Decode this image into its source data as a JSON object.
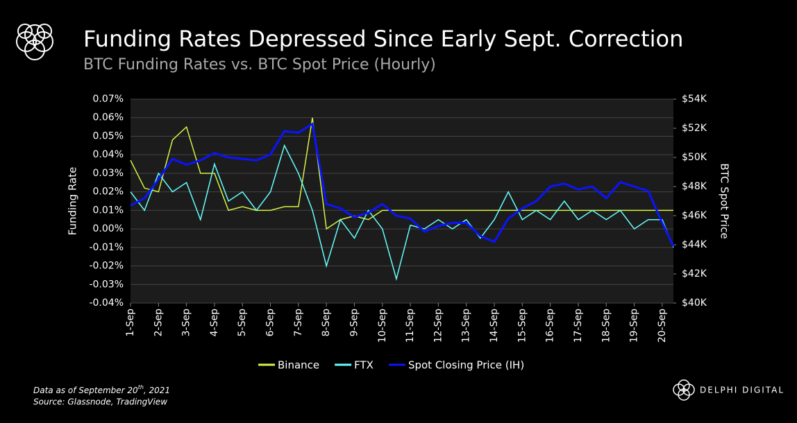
{
  "chart_data": {
    "type": "line",
    "title": "Funding Rates Depressed Since Early Sept. Correction",
    "subtitle": "BTC Funding Rates vs. BTC Spot Price (Hourly)",
    "ylabel": "Funding Rate",
    "y2label": "BTC Spot Price",
    "x": [
      1,
      1.5,
      2,
      2.5,
      3,
      3.5,
      4,
      4.5,
      5,
      5.5,
      6,
      6.5,
      7,
      7.5,
      8,
      8.5,
      9,
      9.5,
      10,
      10.5,
      11,
      11.5,
      12,
      12.5,
      13,
      13.5,
      14,
      14.5,
      15,
      15.5,
      16,
      16.5,
      17,
      17.5,
      18,
      18.5,
      19,
      19.5,
      20,
      20.4
    ],
    "xlim": [
      1,
      20.4
    ],
    "xticks": [
      {
        "value": 1,
        "label": "1-Sep"
      },
      {
        "value": 2,
        "label": "2-Sep"
      },
      {
        "value": 3,
        "label": "3-Sep"
      },
      {
        "value": 4,
        "label": "4-Sep"
      },
      {
        "value": 5,
        "label": "5-Sep"
      },
      {
        "value": 6,
        "label": "6-Sep"
      },
      {
        "value": 7,
        "label": "7-Sep"
      },
      {
        "value": 8,
        "label": "8-Sep"
      },
      {
        "value": 9,
        "label": "9-Sep"
      },
      {
        "value": 10,
        "label": "10-Sep"
      },
      {
        "value": 11,
        "label": "11-Sep"
      },
      {
        "value": 12,
        "label": "12-Sep"
      },
      {
        "value": 13,
        "label": "13-Sep"
      },
      {
        "value": 14,
        "label": "14-Sep"
      },
      {
        "value": 15,
        "label": "15-Sep"
      },
      {
        "value": 16,
        "label": "16-Sep"
      },
      {
        "value": 17,
        "label": "17-Sep"
      },
      {
        "value": 18,
        "label": "18-Sep"
      },
      {
        "value": 19,
        "label": "19-Sep"
      },
      {
        "value": 20,
        "label": "20-Sep"
      }
    ],
    "ylim": [
      -0.04,
      0.07
    ],
    "yticks": [
      {
        "value": -0.04,
        "label": "-0.04%"
      },
      {
        "value": -0.03,
        "label": "-0.03%"
      },
      {
        "value": -0.02,
        "label": "-0.02%"
      },
      {
        "value": -0.01,
        "label": "-0.01%"
      },
      {
        "value": 0,
        "label": "0.00%"
      },
      {
        "value": 0.01,
        "label": "0.01%"
      },
      {
        "value": 0.02,
        "label": "0.02%"
      },
      {
        "value": 0.03,
        "label": "0.03%"
      },
      {
        "value": 0.04,
        "label": "0.04%"
      },
      {
        "value": 0.05,
        "label": "0.05%"
      },
      {
        "value": 0.06,
        "label": "0.06%"
      },
      {
        "value": 0.07,
        "label": "0.07%"
      }
    ],
    "y2lim": [
      40000,
      54000
    ],
    "y2ticks": [
      {
        "value": 40000,
        "label": "$40K"
      },
      {
        "value": 42000,
        "label": "$42K"
      },
      {
        "value": 44000,
        "label": "$44K"
      },
      {
        "value": 46000,
        "label": "$46K"
      },
      {
        "value": 48000,
        "label": "$48K"
      },
      {
        "value": 50000,
        "label": "$50K"
      },
      {
        "value": 52000,
        "label": "$52K"
      },
      {
        "value": 54000,
        "label": "$54K"
      }
    ],
    "grid": true,
    "series": [
      {
        "name": "Binance",
        "color": "#d7f542",
        "values": [
          0.037,
          0.022,
          0.02,
          0.048,
          0.055,
          0.03,
          0.03,
          0.01,
          0.012,
          0.01,
          0.01,
          0.012,
          0.012,
          0.06,
          0.0,
          0.005,
          0.007,
          0.005,
          0.01,
          0.01,
          0.01,
          0.01,
          0.01,
          0.01,
          0.01,
          0.01,
          0.01,
          0.01,
          0.01,
          0.01,
          0.01,
          0.01,
          0.01,
          0.01,
          0.01,
          0.01,
          0.01,
          0.01,
          0.01,
          0.01
        ]
      },
      {
        "name": "FTX",
        "color": "#66ffff",
        "values": [
          0.02,
          0.01,
          0.03,
          0.02,
          0.025,
          0.005,
          0.035,
          0.015,
          0.02,
          0.01,
          0.02,
          0.045,
          0.03,
          0.01,
          -0.02,
          0.005,
          -0.005,
          0.01,
          0.0,
          -0.027,
          0.002,
          0.0,
          0.005,
          0.0,
          0.005,
          -0.005,
          0.005,
          0.02,
          0.005,
          0.01,
          0.005,
          0.015,
          0.005,
          0.01,
          0.005,
          0.01,
          0.0,
          0.005,
          0.005,
          -0.01
        ]
      },
      {
        "name": "Spot Closing Price (IH)",
        "color": "#0a14ff",
        "axis": "y2",
        "values": [
          46700,
          47200,
          48500,
          49900,
          49500,
          49800,
          50300,
          50000,
          49900,
          49800,
          50200,
          51800,
          51700,
          52300,
          46800,
          46500,
          45900,
          46200,
          46800,
          46000,
          45800,
          44900,
          45300,
          45500,
          45500,
          44600,
          44200,
          45800,
          46500,
          47000,
          48000,
          48200,
          47800,
          48000,
          47200,
          48300,
          48000,
          47700,
          45500,
          43900
        ]
      }
    ]
  },
  "footnote": {
    "prefix": "Data as of September 20",
    "sup": "th",
    "suffix": ", 2021",
    "source": "Source: Glassnode, TradingView"
  },
  "brand": "DELPHI DIGITAL"
}
